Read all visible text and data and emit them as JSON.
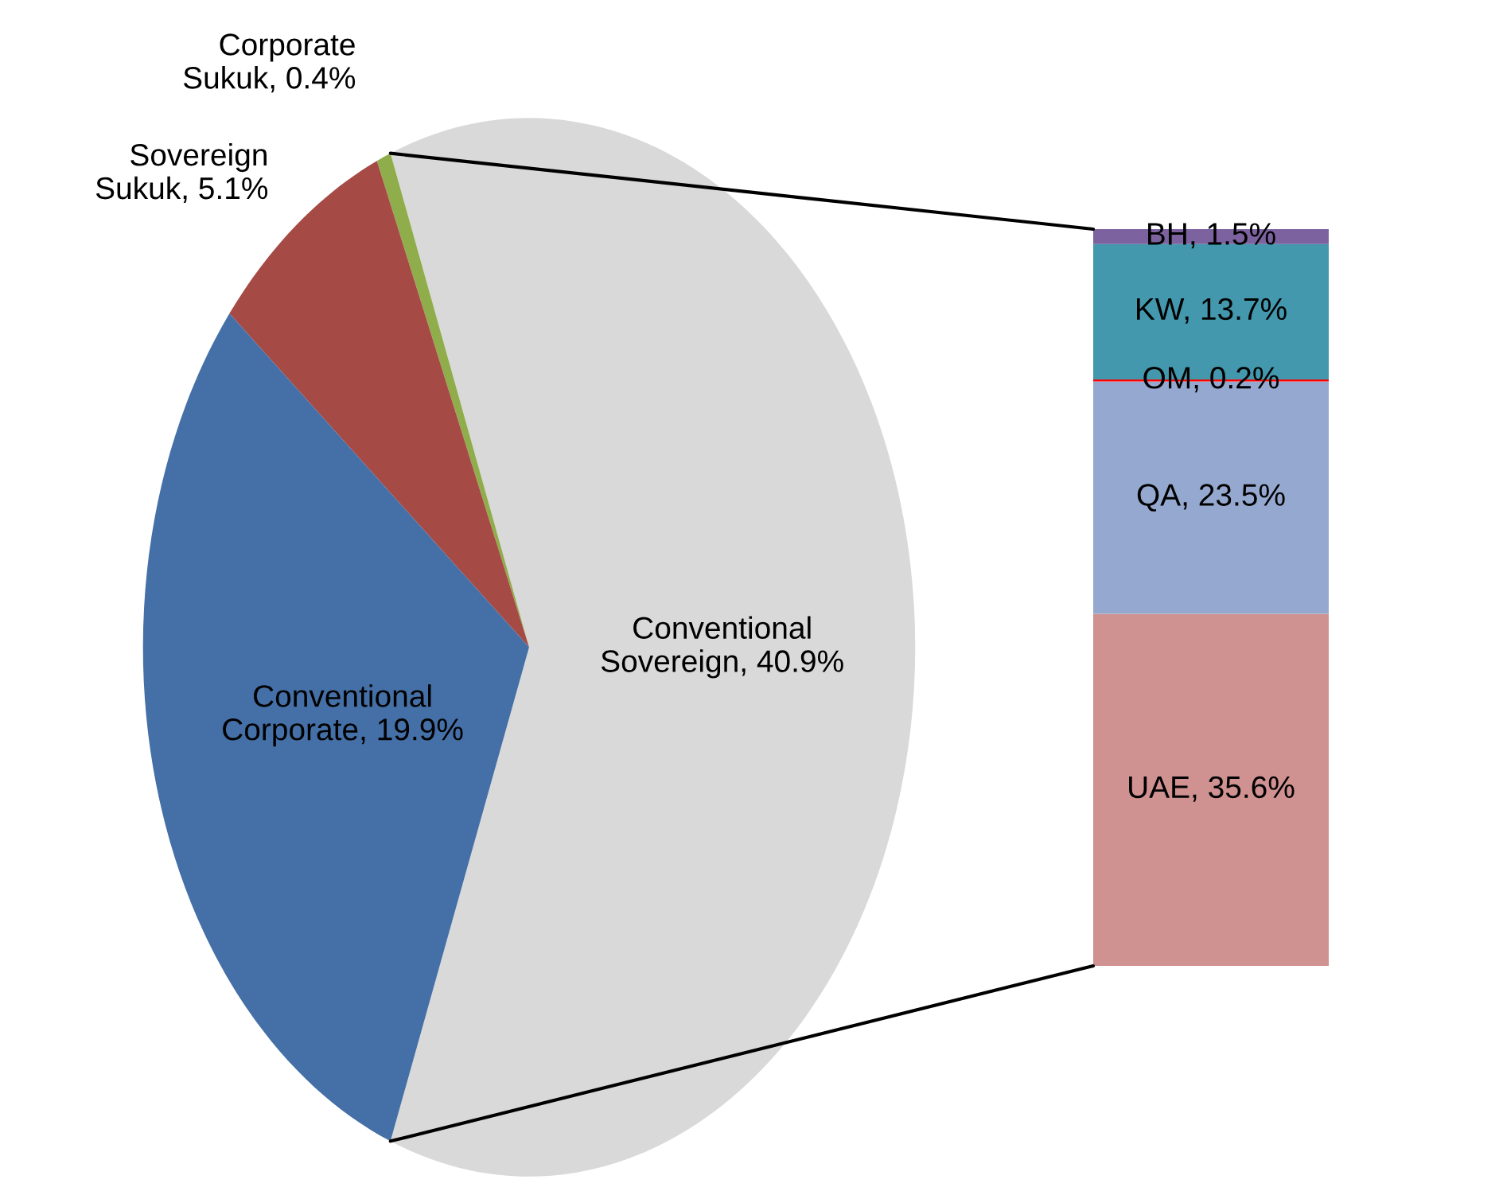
{
  "chart_data": [
    {
      "type": "pie",
      "categories": [
        "Conventional Sovereign, 40.9%",
        "Corporate Sukuk, 0.4%",
        "Sovereign Sukuk, 5.1%",
        "Conventional Corporate, 19.9%"
      ],
      "values": [
        40.9,
        0.4,
        5.1,
        19.9
      ],
      "colors": [
        "#d9d9d9",
        "#8fad4b",
        "#a64a46",
        "#4470a7"
      ]
    },
    {
      "type": "bar",
      "stacked": true,
      "categories": [
        null
      ],
      "series": [
        {
          "color": "#d09191",
          "values": [
            35.6
          ],
          "value_labels": [
            "UAE, 35.6%"
          ]
        },
        {
          "color": "#95a9d0",
          "values": [
            23.5
          ],
          "value_labels": [
            "QA, 23.5%"
          ]
        },
        {
          "color": "#ff0000",
          "values": [
            0.2
          ],
          "value_labels": [
            "OM, 0.2%"
          ]
        },
        {
          "color": "#4398ad",
          "values": [
            13.7
          ],
          "value_labels": [
            "KW, 13.7%"
          ]
        },
        {
          "color": "#7d62a0",
          "values": [
            1.5
          ],
          "value_labels": [
            "BH, 1.5%"
          ]
        }
      ]
    }
  ]
}
